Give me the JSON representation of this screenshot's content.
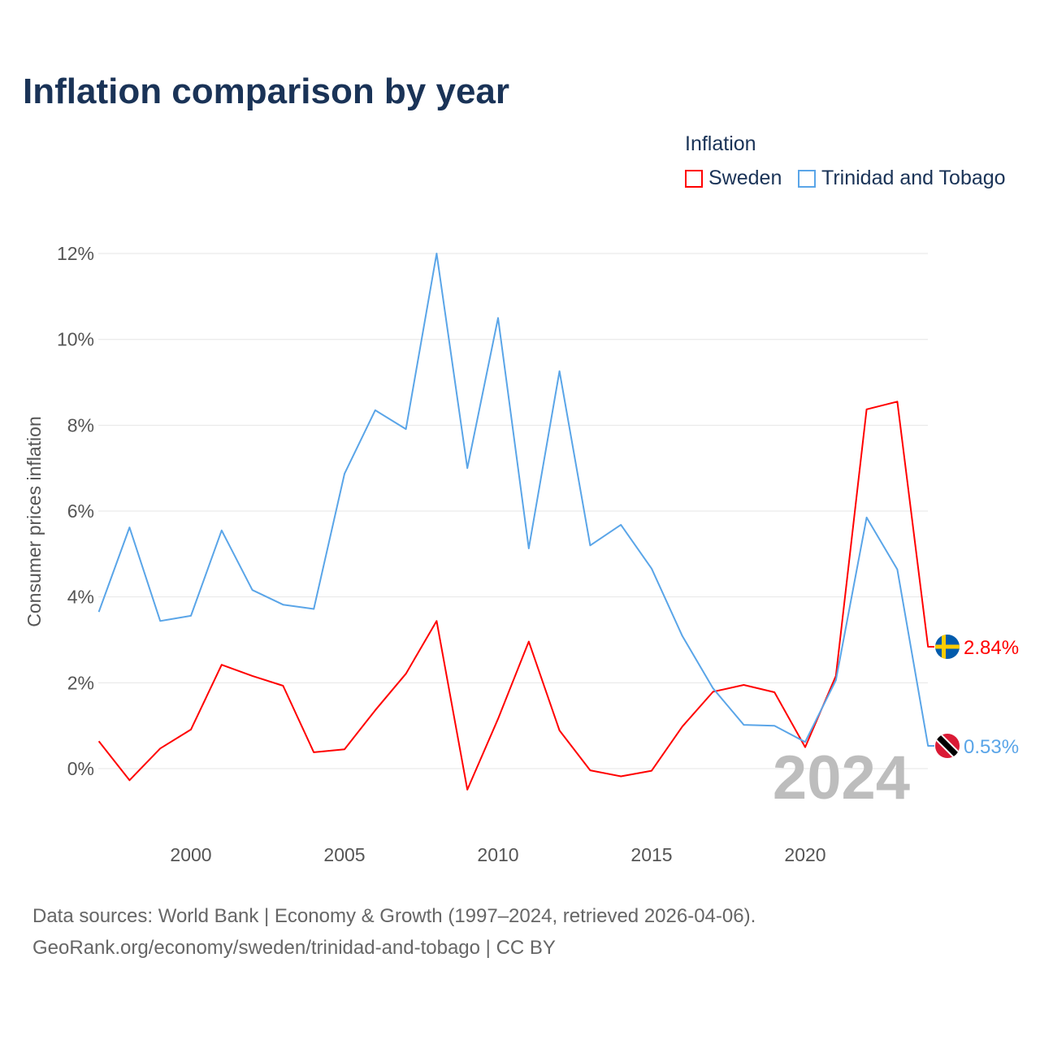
{
  "title": "Inflation comparison by year",
  "legend": {
    "title": "Inflation",
    "items": [
      {
        "label": "Sweden",
        "color": "#ff0000"
      },
      {
        "label": "Trinidad and Tobago",
        "color": "#5aa5e8"
      }
    ]
  },
  "footer": {
    "line1": "Data sources: World Bank | Economy & Growth (1997–2024, retrieved 2026-04-06).",
    "line2": "GeoRank.org/economy/sweden/trinidad-and-tobago | CC BY"
  },
  "chart_data": {
    "type": "line",
    "title": "Inflation comparison by year",
    "ylabel": "Consumer prices inflation",
    "xlabel": "",
    "xlim": [
      1997,
      2024
    ],
    "ylim": [
      -1.2,
      12.4
    ],
    "x_ticks": [
      2000,
      2005,
      2010,
      2015,
      2020
    ],
    "y_ticks": [
      0,
      2,
      4,
      6,
      8,
      10,
      12
    ],
    "y_tick_labels": [
      "0%",
      "2%",
      "4%",
      "6%",
      "8%",
      "10%",
      "12%"
    ],
    "grid": true,
    "legend_position": "top-right",
    "year_watermark": "2024",
    "x": [
      1997,
      1998,
      1999,
      2000,
      2001,
      2002,
      2003,
      2004,
      2005,
      2006,
      2007,
      2008,
      2009,
      2010,
      2011,
      2012,
      2013,
      2014,
      2015,
      2016,
      2017,
      2018,
      2019,
      2020,
      2021,
      2022,
      2023,
      2024
    ],
    "series": [
      {
        "name": "Sweden",
        "color": "#ff0000",
        "end_label": "2.84%",
        "flag": "sweden-flag",
        "values": [
          0.64,
          -0.27,
          0.47,
          0.91,
          2.42,
          2.16,
          1.93,
          0.38,
          0.45,
          1.36,
          2.21,
          3.44,
          -0.49,
          1.16,
          2.96,
          0.89,
          -0.04,
          -0.18,
          -0.05,
          0.98,
          1.79,
          1.95,
          1.78,
          0.5,
          2.16,
          8.37,
          8.55,
          2.84
        ]
      },
      {
        "name": "Trinidad and Tobago",
        "color": "#5aa5e8",
        "end_label": "0.53%",
        "flag": "trinidad-flag",
        "values": [
          3.65,
          5.62,
          3.44,
          3.56,
          5.55,
          4.16,
          3.82,
          3.72,
          6.87,
          8.35,
          7.91,
          12.0,
          7.0,
          10.5,
          5.13,
          9.26,
          5.2,
          5.68,
          4.66,
          3.09,
          1.87,
          1.02,
          1.0,
          0.62,
          2.06,
          5.85,
          4.64,
          0.53
        ]
      }
    ]
  }
}
